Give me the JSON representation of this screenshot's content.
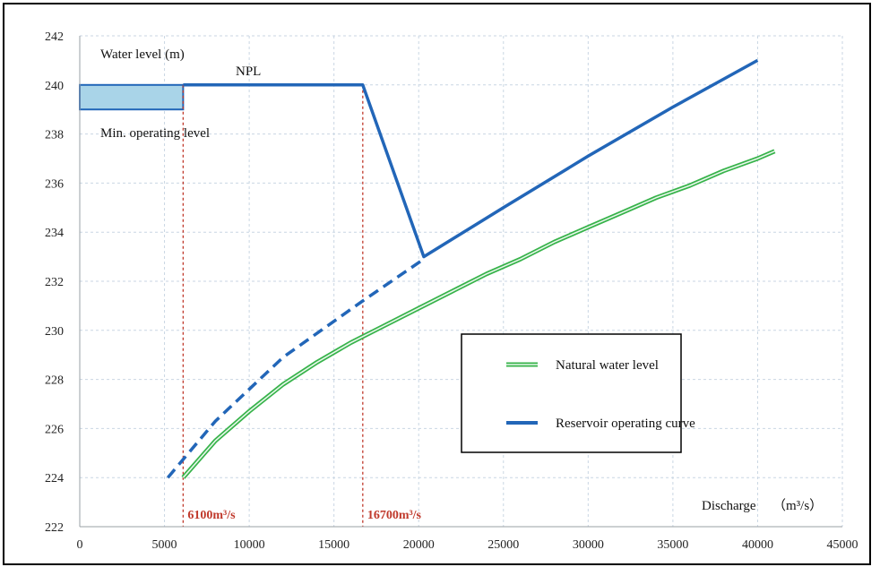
{
  "chart_data": {
    "type": "line",
    "title": "",
    "xlabel": "",
    "ylabel": "",
    "xlim": [
      0,
      45000
    ],
    "ylim": [
      222,
      242
    ],
    "x_ticks": [
      0,
      5000,
      10000,
      15000,
      20000,
      25000,
      30000,
      35000,
      40000,
      45000
    ],
    "y_ticks": [
      222,
      224,
      226,
      228,
      230,
      232,
      234,
      236,
      238,
      240,
      242
    ],
    "grid": true,
    "legend_position": "center-right",
    "series": [
      {
        "name": "Natural water level",
        "color": "#37b34a",
        "style": "double-solid",
        "x": [
          6100,
          8000,
          10000,
          12000,
          14000,
          16000,
          18000,
          20000,
          22000,
          24000,
          26000,
          28000,
          30000,
          32000,
          34000,
          36000,
          38000,
          40000,
          41000
        ],
        "y": [
          224.0,
          225.5,
          226.7,
          227.8,
          228.7,
          229.5,
          230.2,
          230.9,
          231.6,
          232.3,
          232.9,
          233.6,
          234.2,
          234.8,
          235.4,
          235.9,
          236.5,
          237.0,
          237.3
        ]
      },
      {
        "name": "Reservoir operating curve",
        "color": "#2266b8",
        "style": "solid",
        "x": [
          6100,
          16700,
          20300,
          25000,
          30000,
          35000,
          40000
        ],
        "y": [
          240.0,
          240.0,
          233.0,
          235.0,
          237.1,
          239.1,
          241.0
        ]
      },
      {
        "name": "",
        "color": "#2266b8",
        "style": "dashed",
        "x": [
          5200,
          8000,
          12000,
          16700,
          20300
        ],
        "y": [
          224.0,
          226.3,
          228.9,
          231.2,
          232.9
        ]
      }
    ],
    "vertical_lines": [
      {
        "x": 6100,
        "label": "6100m³/s",
        "color": "#c0392b"
      },
      {
        "x": 16700,
        "label": "16700m³/s",
        "color": "#c0392b"
      }
    ],
    "storage_band": {
      "x": [
        0,
        6100
      ],
      "y": [
        239,
        240
      ],
      "color": "#a9d4e8"
    }
  },
  "annotations": {
    "water_level": "Water level (m)",
    "npl": "NPL",
    "min_level": "Min. operating level",
    "discharge": "Discharge",
    "discharge_unit": "（m³/s）"
  }
}
